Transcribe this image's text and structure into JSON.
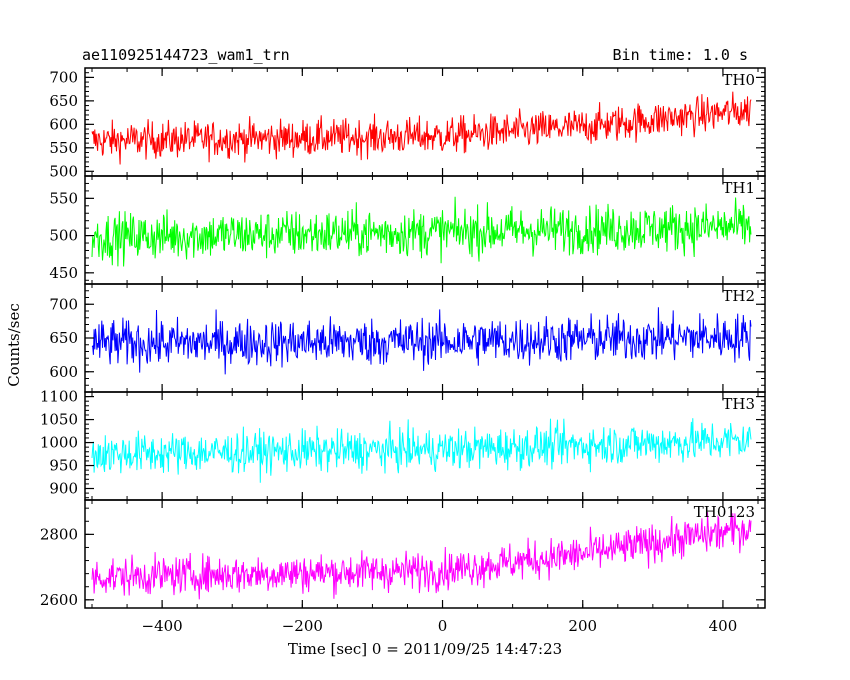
{
  "header": {
    "left_title": "ae110925144723_wam1_trn",
    "right_title": "Bin time: 1.0 s"
  },
  "chart_data": {
    "type": "line",
    "xlabel": "Time [sec] 0 = 2011/09/25 14:47:23",
    "ylabel": "Counts/sec",
    "xlim": [
      -510,
      460
    ],
    "x_ticks": [
      -400,
      -200,
      0,
      200,
      400
    ],
    "x_range": [
      -500,
      440
    ],
    "series": [
      {
        "name": "TH0",
        "color": "#ff0000",
        "ylim": [
          490,
          720
        ],
        "y_ticks": [
          500,
          550,
          600,
          650,
          700
        ],
        "y_points": [
          {
            "x": -500,
            "y": 565
          },
          {
            "x": 0,
            "y": 575
          },
          {
            "x": 200,
            "y": 595
          },
          {
            "x": 440,
            "y": 630
          }
        ],
        "noise": 28
      },
      {
        "name": "TH1",
        "color": "#00ff00",
        "ylim": [
          435,
          580
        ],
        "y_ticks": [
          450,
          500,
          550
        ],
        "y_points": [
          {
            "x": -500,
            "y": 498
          },
          {
            "x": 0,
            "y": 505
          },
          {
            "x": 440,
            "y": 512
          }
        ],
        "noise": 23
      },
      {
        "name": "TH2",
        "color": "#0000ff",
        "ylim": [
          570,
          730
        ],
        "y_ticks": [
          600,
          650,
          700
        ],
        "y_points": [
          {
            "x": -500,
            "y": 642
          },
          {
            "x": 0,
            "y": 645
          },
          {
            "x": 440,
            "y": 652
          }
        ],
        "noise": 25
      },
      {
        "name": "TH3",
        "color": "#00ffff",
        "ylim": [
          875,
          1110
        ],
        "y_ticks": [
          900,
          950,
          1000,
          1050,
          1100
        ],
        "y_points": [
          {
            "x": -500,
            "y": 975
          },
          {
            "x": 0,
            "y": 985
          },
          {
            "x": 440,
            "y": 1005
          }
        ],
        "noise": 32
      },
      {
        "name": "TH0123",
        "color": "#ff00ff",
        "ylim": [
          2575,
          2905
        ],
        "y_ticks": [
          2600,
          2800
        ],
        "y_points": [
          {
            "x": -500,
            "y": 2670
          },
          {
            "x": 0,
            "y": 2690
          },
          {
            "x": 200,
            "y": 2740
          },
          {
            "x": 440,
            "y": 2820
          }
        ],
        "noise": 42
      }
    ],
    "grid": false,
    "legend": "panel labels top-right"
  }
}
